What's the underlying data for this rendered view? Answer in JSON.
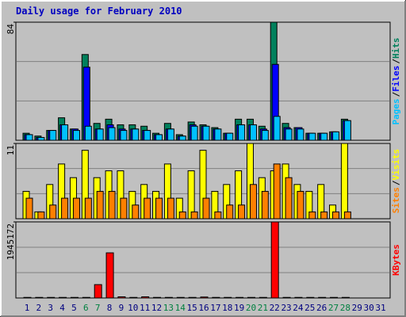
{
  "title": "Daily usage for February 2010",
  "legend_separator": "/",
  "chart_data": [
    {
      "type": "bar",
      "ylim": [
        0,
        84
      ],
      "yticks": [
        84
      ],
      "series": [
        {
          "name": "Hits",
          "color": "#00805c",
          "values": [
            5,
            3,
            7,
            16,
            8,
            61,
            12,
            15,
            11,
            11,
            10,
            5,
            12,
            4,
            13,
            11,
            9,
            5,
            15,
            15,
            10,
            84,
            12,
            9,
            5,
            5,
            6,
            15,
            null,
            null,
            null
          ]
        },
        {
          "name": "Files",
          "color": "#0000ff",
          "values": [
            4,
            2,
            7,
            11,
            8,
            52,
            8,
            11,
            8,
            8,
            7,
            4,
            8,
            3,
            11,
            10,
            8,
            5,
            11,
            11,
            8,
            54,
            9,
            9,
            5,
            5,
            6,
            14,
            null,
            null,
            null
          ]
        },
        {
          "name": "Pages",
          "color": "#00c0ff",
          "values": [
            4,
            2,
            7,
            11,
            7,
            10,
            8,
            9,
            7,
            8,
            7,
            4,
            8,
            3,
            10,
            10,
            8,
            5,
            11,
            11,
            7,
            17,
            8,
            8,
            5,
            5,
            6,
            14,
            null,
            null,
            null
          ]
        }
      ]
    },
    {
      "type": "bar",
      "ylim": [
        0,
        11
      ],
      "yticks": [
        11
      ],
      "series": [
        {
          "name": "Visits",
          "color": "#ffff00",
          "values": [
            4,
            1,
            5,
            8,
            6,
            10,
            6,
            7,
            7,
            4,
            5,
            4,
            8,
            3,
            7,
            10,
            4,
            5,
            7,
            11,
            6,
            7,
            8,
            5,
            4,
            5,
            2,
            11,
            null,
            null,
            null
          ]
        },
        {
          "name": "Sites",
          "color": "#ff8000",
          "values": [
            3,
            1,
            2,
            3,
            3,
            3,
            4,
            4,
            3,
            2,
            3,
            3,
            3,
            1,
            1,
            3,
            1,
            2,
            2,
            5,
            4,
            8,
            6,
            4,
            1,
            1,
            1,
            1,
            null,
            null,
            null
          ]
        }
      ]
    },
    {
      "type": "bar",
      "ylim": [
        0,
        1945172
      ],
      "yticks": [
        1945172
      ],
      "categories": [
        "1",
        "2",
        "3",
        "4",
        "5",
        "6",
        "7",
        "8",
        "9",
        "10",
        "11",
        "12",
        "13",
        "14",
        "15",
        "16",
        "17",
        "18",
        "19",
        "20",
        "21",
        "22",
        "23",
        "24",
        "25",
        "26",
        "27",
        "28",
        "29",
        "30",
        "31"
      ],
      "category_colors": [
        "#000080",
        "#000080",
        "#000080",
        "#000080",
        "#000080",
        "#008040",
        "#008040",
        "#000080",
        "#000080",
        "#000080",
        "#000080",
        "#000080",
        "#008040",
        "#008040",
        "#000080",
        "#000080",
        "#000080",
        "#000080",
        "#000080",
        "#008040",
        "#008040",
        "#000080",
        "#000080",
        "#000080",
        "#000080",
        "#000080",
        "#008040",
        "#008040",
        "#000080",
        "#000080",
        "#000080"
      ],
      "series": [
        {
          "name": "KBytes",
          "color": "#ff0000",
          "values": [
            15000,
            15000,
            15000,
            15000,
            15000,
            15000,
            342000,
            1154000,
            30000,
            15000,
            30000,
            15000,
            15000,
            15000,
            15000,
            25000,
            15000,
            15000,
            15000,
            15000,
            15000,
            1945172,
            15000,
            15000,
            15000,
            15000,
            15000,
            15000,
            null,
            null,
            null
          ]
        }
      ]
    }
  ]
}
